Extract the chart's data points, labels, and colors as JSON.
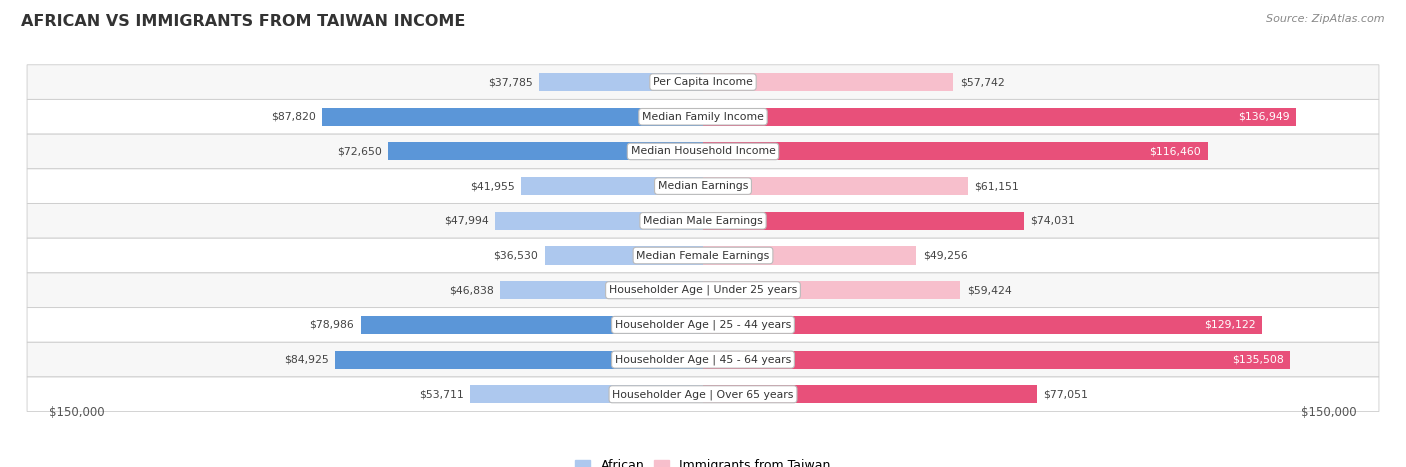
{
  "title": "AFRICAN VS IMMIGRANTS FROM TAIWAN INCOME",
  "source": "Source: ZipAtlas.com",
  "categories": [
    "Per Capita Income",
    "Median Family Income",
    "Median Household Income",
    "Median Earnings",
    "Median Male Earnings",
    "Median Female Earnings",
    "Householder Age | Under 25 years",
    "Householder Age | 25 - 44 years",
    "Householder Age | 45 - 64 years",
    "Householder Age | Over 65 years"
  ],
  "african_values": [
    37785,
    87820,
    72650,
    41955,
    47994,
    36530,
    46838,
    78986,
    84925,
    53711
  ],
  "taiwan_values": [
    57742,
    136949,
    116460,
    61151,
    74031,
    49256,
    59424,
    129122,
    135508,
    77051
  ],
  "african_labels": [
    "$37,785",
    "$87,820",
    "$72,650",
    "$41,955",
    "$47,994",
    "$36,530",
    "$46,838",
    "$78,986",
    "$84,925",
    "$53,711"
  ],
  "taiwan_labels": [
    "$57,742",
    "$136,949",
    "$116,460",
    "$61,151",
    "$74,031",
    "$49,256",
    "$59,424",
    "$129,122",
    "$135,508",
    "$77,051"
  ],
  "max_value": 150000,
  "african_light_color": "#adc8ee",
  "african_dark_color": "#5b96d8",
  "taiwan_light_color": "#f7bfcc",
  "taiwan_dark_color": "#e8507a",
  "bg_color": "#ffffff",
  "row_bg_even": "#f7f7f7",
  "row_bg_odd": "#ffffff",
  "legend_african": "African",
  "legend_taiwan": "Immigrants from Taiwan",
  "x_label_left": "$150,000",
  "x_label_right": "$150,000",
  "bar_height": 0.52,
  "threshold_dark": 70000
}
